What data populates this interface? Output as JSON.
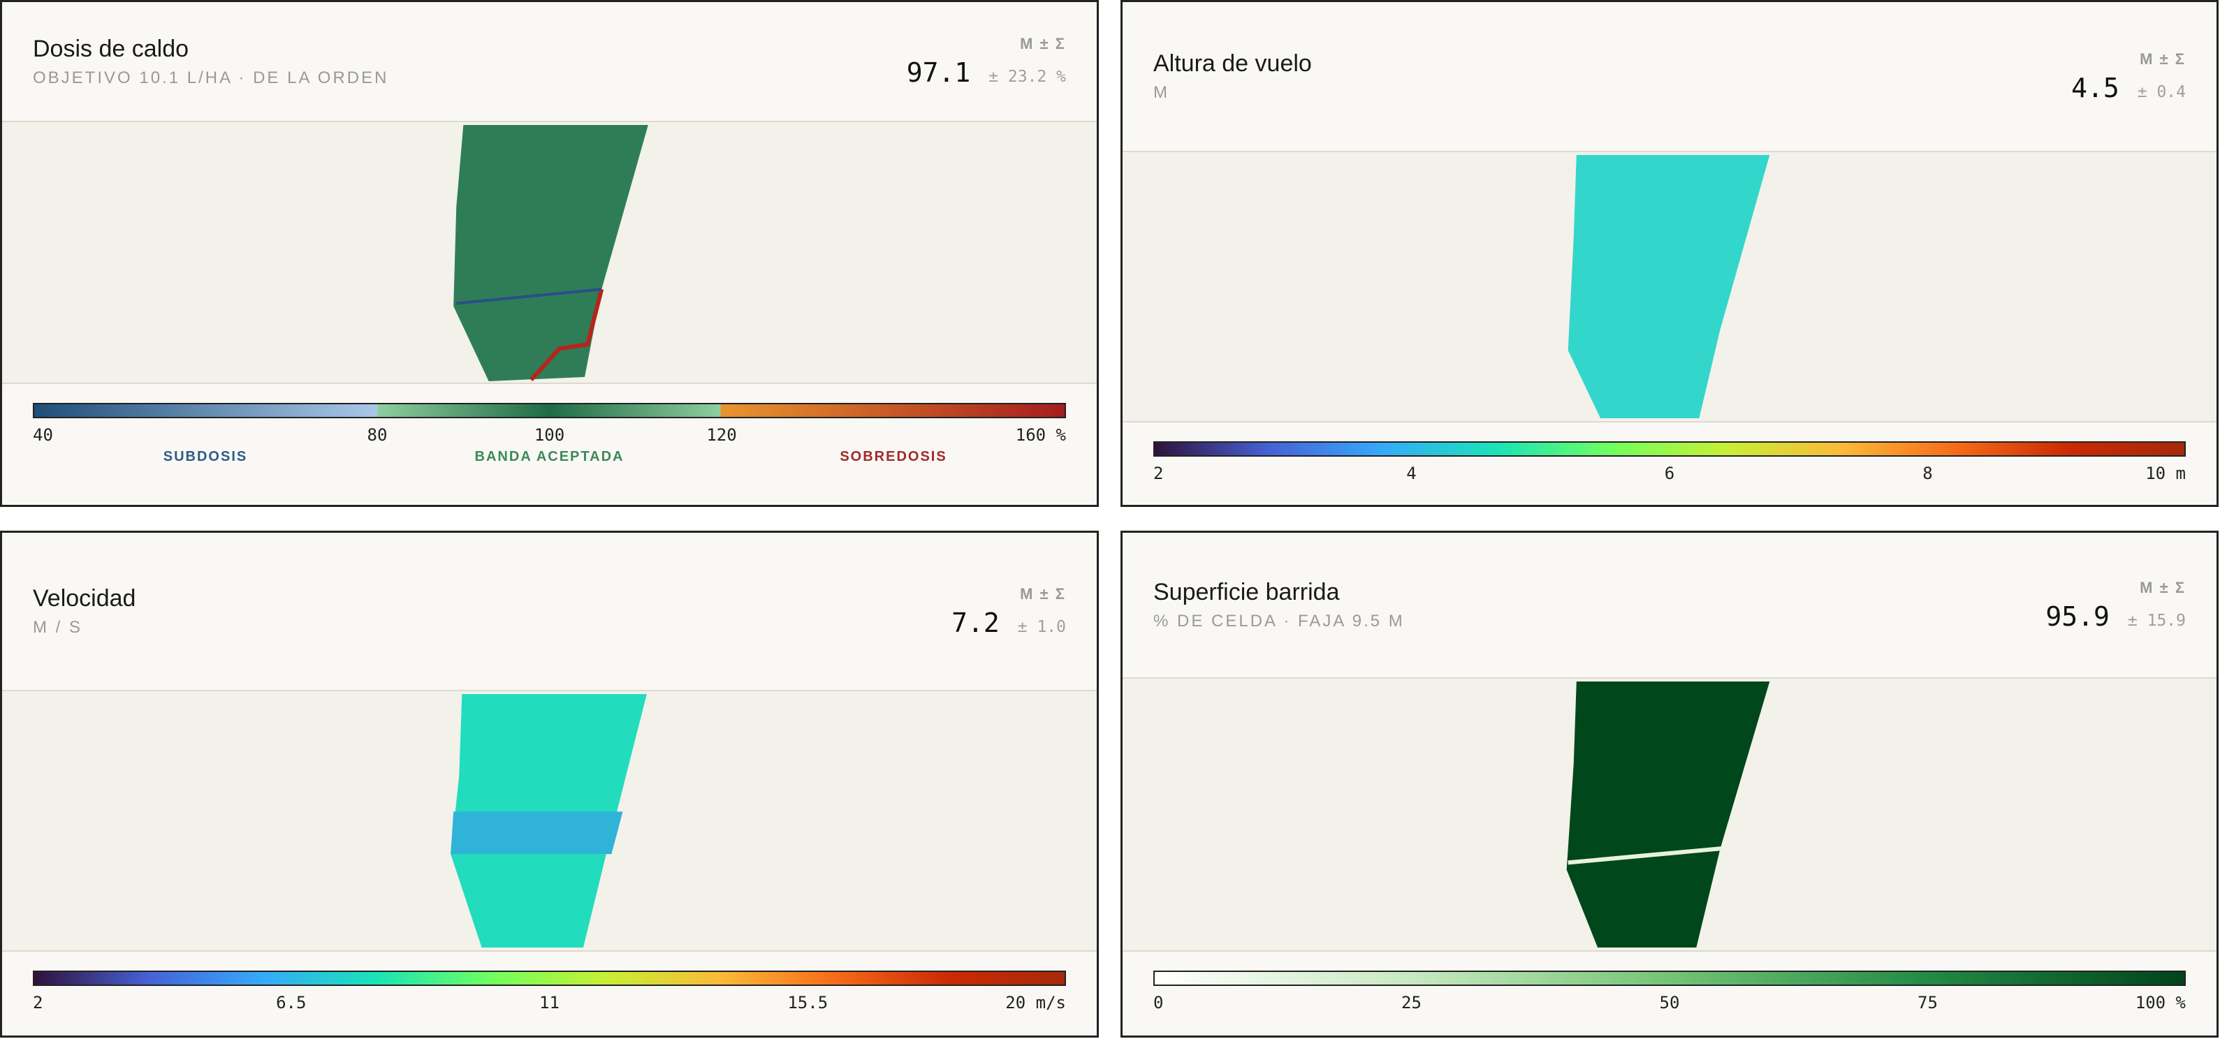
{
  "panels": [
    {
      "title": "Dosis de caldo",
      "subtitle": "OBJETIVO 10.1 L/HA · DE LA ORDEN",
      "stat_label": "M ± Σ",
      "mean": "97.1",
      "sd": "± 23.2 %",
      "scale_ticks": [
        "40",
        "80",
        "100",
        "120",
        "160 %"
      ],
      "bands": [
        "SUBDOSIS",
        "BANDA ACEPTADA",
        "SOBREDOSIS"
      ]
    },
    {
      "title": "Altura de vuelo",
      "subtitle": "M",
      "stat_label": "M ± Σ",
      "mean": "4.5",
      "sd": "± 0.4",
      "scale_ticks": [
        "2",
        "4",
        "6",
        "8",
        "10 m"
      ]
    },
    {
      "title": "Velocidad",
      "subtitle": "M / S",
      "stat_label": "M ± Σ",
      "mean": "7.2",
      "sd": "± 1.0",
      "scale_ticks": [
        "2",
        "6.5",
        "11",
        "15.5",
        "20 m/s"
      ]
    },
    {
      "title": "Superficie barrida",
      "subtitle": "% DE CELDA · FAJA 9.5 M",
      "stat_label": "M ± Σ",
      "mean": "95.9",
      "sd": "± 15.9",
      "scale_ticks": [
        "0",
        "25",
        "50",
        "75",
        "100 %"
      ]
    }
  ]
}
